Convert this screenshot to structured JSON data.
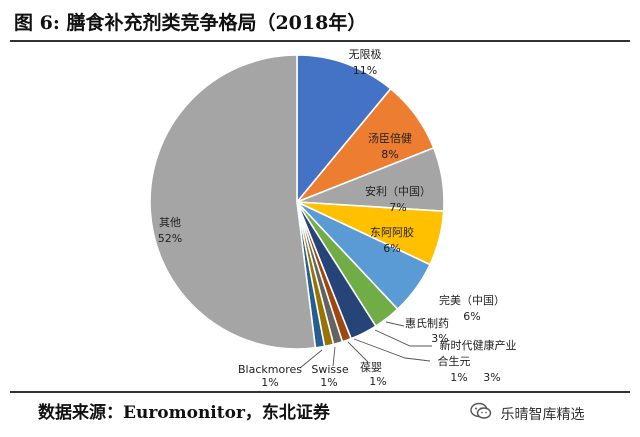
{
  "header": {
    "title": "图  6:  膳食补充剂类竞争格局（2018年）"
  },
  "chart_data": {
    "type": "pie",
    "title": "",
    "slices": [
      {
        "name": "无限极",
        "value": 11,
        "label": "11%",
        "color": "#4472C4"
      },
      {
        "name": "汤臣倍健",
        "value": 8,
        "label": "8%",
        "color": "#ED7D31"
      },
      {
        "name": "安利（中国）",
        "value": 7,
        "label": "7%",
        "color": "#A5A5A5"
      },
      {
        "name": "东阿阿胶",
        "value": 6,
        "label": "6%",
        "color": "#FFC000"
      },
      {
        "name": "完美（中国）",
        "value": 6,
        "label": "6%",
        "color": "#5B9BD5"
      },
      {
        "name": "惠氏制药",
        "value": 3,
        "label": "3%",
        "color": "#70AD47"
      },
      {
        "name": "新时代健康产业",
        "value": 3,
        "label": "3%",
        "color": "#264478"
      },
      {
        "name": "合生元",
        "value": 1,
        "label": "1%",
        "color": "#9E480E"
      },
      {
        "name": "葆婴",
        "value": 1,
        "label": "1%",
        "color": "#636363"
      },
      {
        "name": "Swisse",
        "value": 1,
        "label": "1%",
        "color": "#997300"
      },
      {
        "name": "Blackmores",
        "value": 1,
        "label": "1%",
        "color": "#255E91"
      },
      {
        "name": "其他",
        "value": 52,
        "label": "52%",
        "color": "#A5A5A5"
      }
    ]
  },
  "footer": {
    "source": "数据来源：Euromonitor，东北证券",
    "watermark": "乐晴智库精选",
    "watermark_icon": "wechat-icon"
  }
}
